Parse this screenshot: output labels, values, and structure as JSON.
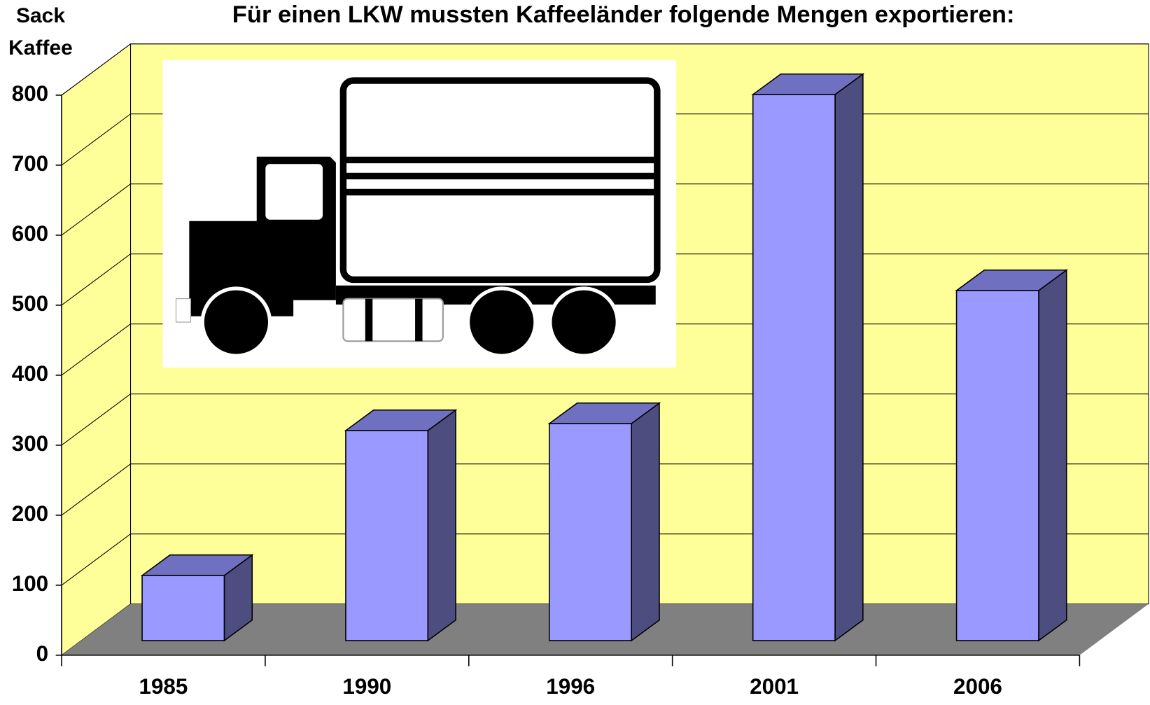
{
  "chart_data": {
    "type": "bar3d",
    "title": "Für einen LKW mussten Kaffeeländer folgende Mengen exportieren:",
    "y_label": "Sack Kaffee",
    "categories": [
      "1985",
      "1990",
      "1996",
      "2001",
      "2006"
    ],
    "values": [
      93,
      300,
      310,
      780,
      500
    ],
    "color": "#9999ff",
    "ylim": [
      0,
      800
    ],
    "yticks": [
      0,
      100,
      200,
      300,
      400,
      500,
      600,
      700,
      800
    ],
    "grid": true
  }
}
